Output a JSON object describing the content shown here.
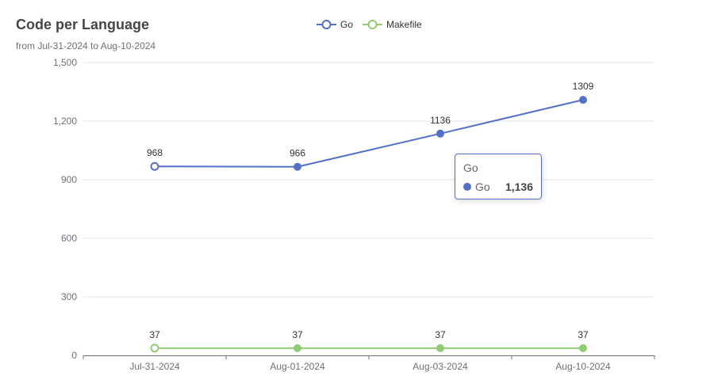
{
  "chart_data": {
    "type": "line",
    "title": "Code per Language",
    "subtitle": "from Jul-31-2024 to Aug-10-2024",
    "categories": [
      "Jul-31-2024",
      "Aug-01-2024",
      "Aug-03-2024",
      "Aug-10-2024"
    ],
    "series": [
      {
        "name": "Go",
        "values": [
          968,
          966,
          1136,
          1309
        ],
        "color": "#5470c6"
      },
      {
        "name": "Makefile",
        "values": [
          37,
          37,
          37,
          37
        ],
        "color": "#91cc75"
      }
    ],
    "yticks": [
      "0",
      "300",
      "600",
      "900",
      "1,200",
      "1,500"
    ],
    "ylim": [
      0,
      1500
    ],
    "grid": true,
    "legend": "top-center",
    "xlabel": "",
    "ylabel": ""
  },
  "tooltip": {
    "title": "Go",
    "series_name": "Go",
    "value": "1,136",
    "color": "#5470c6"
  }
}
